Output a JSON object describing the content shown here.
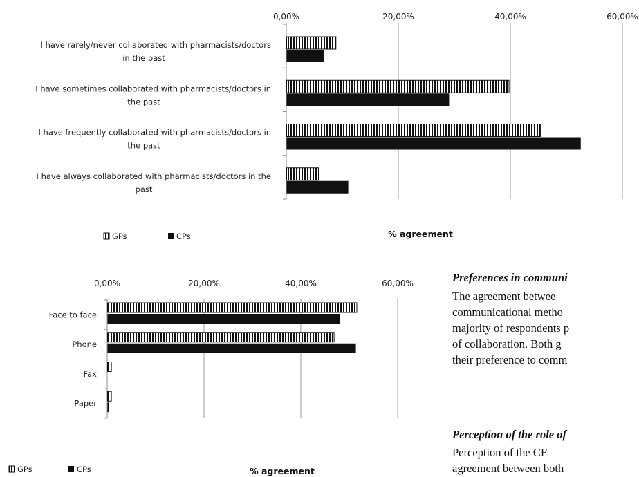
{
  "chart_data": [
    {
      "type": "bar",
      "orientation": "horizontal",
      "title": "",
      "xlabel": "% agreement",
      "ylabel": "",
      "xlim": [
        0,
        60
      ],
      "ticks": [
        "0,00%",
        "20,00%",
        "40,00%",
        "60,00%"
      ],
      "grid": true,
      "legend_position": "bottom-left",
      "categories": [
        "I have rarely/never collaborated with pharmacists/doctors in the past",
        "I have sometimes collaborated with pharmacists/doctors in the past",
        "I have frequently collaborated with pharmacists/doctors in the past",
        "I have always collaborated with pharmacists/doctors in the past"
      ],
      "category_lines": [
        [
          "I have rarely/never collaborated with pharmacists/doctors",
          "in the past"
        ],
        [
          "I have sometimes collaborated with pharmacists/doctors in",
          "the past"
        ],
        [
          "I have frequently collaborated with pharmacists/doctors in",
          "the past"
        ],
        [
          "I have always collaborated with pharmacists/doctors in the",
          "past"
        ]
      ],
      "series": [
        {
          "name": "GPs",
          "pattern": "vertical-stripes",
          "values": [
            8.8,
            39.7,
            45.3,
            5.8
          ]
        },
        {
          "name": "CPs",
          "pattern": "solid",
          "values": [
            6.6,
            29.0,
            52.5,
            11.0
          ]
        }
      ]
    },
    {
      "type": "bar",
      "orientation": "horizontal",
      "title": "",
      "xlabel": "% agreement",
      "ylabel": "",
      "xlim": [
        0,
        60
      ],
      "ticks": [
        "0,00%",
        "20,00%",
        "40,00%",
        "60,00%"
      ],
      "grid": true,
      "legend_position": "bottom-left",
      "categories": [
        "Face to face",
        "Phone",
        "Fax",
        "Paper"
      ],
      "category_lines": [
        [
          "Face to face"
        ],
        [
          "Phone"
        ],
        [
          "Fax"
        ],
        [
          "Paper"
        ]
      ],
      "series": [
        {
          "name": "GPs",
          "pattern": "vertical-stripes",
          "values": [
            51.5,
            46.8,
            0.8,
            0.8
          ]
        },
        {
          "name": "CPs",
          "pattern": "solid",
          "values": [
            48.0,
            51.3,
            0.0,
            0.3
          ]
        }
      ]
    }
  ],
  "text": {
    "heading1": "Preferences in communi",
    "para1": [
      "The agreement betwee",
      "communicational metho",
      "majority of respondents p",
      "of collaboration. Both g",
      "their preference to comm"
    ],
    "heading2": "Perception of the role of",
    "para2": [
      "Perception of the CF",
      "agreement between both"
    ]
  },
  "colors": {
    "bar_solid": "#111111",
    "grid": "#9a9a9a",
    "axis": "#8c8c8c"
  }
}
